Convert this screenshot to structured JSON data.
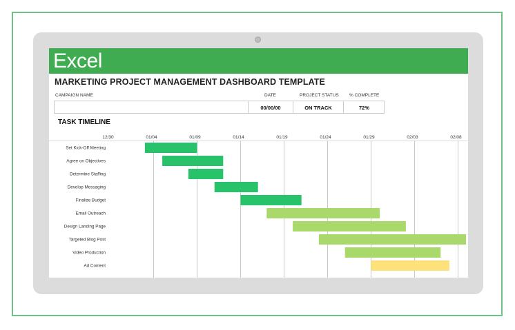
{
  "app": {
    "name": "Excel"
  },
  "dashboard": {
    "title": "MARKETING PROJECT MANAGEMENT DASHBOARD TEMPLATE",
    "headers": {
      "campaign_name": "CAMPAIGN NAME",
      "date": "DATE",
      "project_status": "PROJECT STATUS",
      "percent_complete": "% COMPLETE"
    },
    "values": {
      "campaign_name": "",
      "date": "00/00/00",
      "project_status": "ON TRACK",
      "percent_complete": "72%"
    }
  },
  "timeline": {
    "title": "TASK TIMELINE"
  },
  "colors": {
    "accent": "#40ac52",
    "bar_dark_green": "#27c26a",
    "bar_light_green": "#a8d96a",
    "bar_yellow": "#fde17a",
    "gridline": "#c8c8c8"
  },
  "chart_data": {
    "type": "gantt",
    "title": "",
    "x_ticks": [
      "12/30",
      "01/04",
      "01/09",
      "01/14",
      "01/19",
      "01/24",
      "01/29",
      "02/03",
      "02/08"
    ],
    "x_tick_days": [
      0,
      5,
      10,
      15,
      20,
      25,
      30,
      35,
      40
    ],
    "grid": true,
    "tasks": [
      {
        "name": "Set Kick-Off Meeting",
        "start": "01/03",
        "end": "01/09",
        "color": "#27c26a"
      },
      {
        "name": "Agree on Objectives",
        "start": "01/05",
        "end": "01/12",
        "color": "#27c26a"
      },
      {
        "name": "Determine Staffing",
        "start": "01/08",
        "end": "01/12",
        "color": "#27c26a"
      },
      {
        "name": "Develop Messaging",
        "start": "01/11",
        "end": "01/16",
        "color": "#27c26a"
      },
      {
        "name": "Finalize Budget",
        "start": "01/14",
        "end": "01/21",
        "color": "#27c26a"
      },
      {
        "name": "Email Outreach",
        "start": "01/17",
        "end": "01/30",
        "color": "#a8d96a"
      },
      {
        "name": "Design Landing Page",
        "start": "01/20",
        "end": "02/02",
        "color": "#a8d96a"
      },
      {
        "name": "Targeted Blog Post",
        "start": "01/23",
        "end": "02/10",
        "color": "#a8d96a"
      },
      {
        "name": "Video Production",
        "start": "01/26",
        "end": "02/06",
        "color": "#a8d96a"
      },
      {
        "name": "Ad Content",
        "start": "01/29",
        "end": "02/07",
        "color": "#fde17a"
      }
    ]
  }
}
